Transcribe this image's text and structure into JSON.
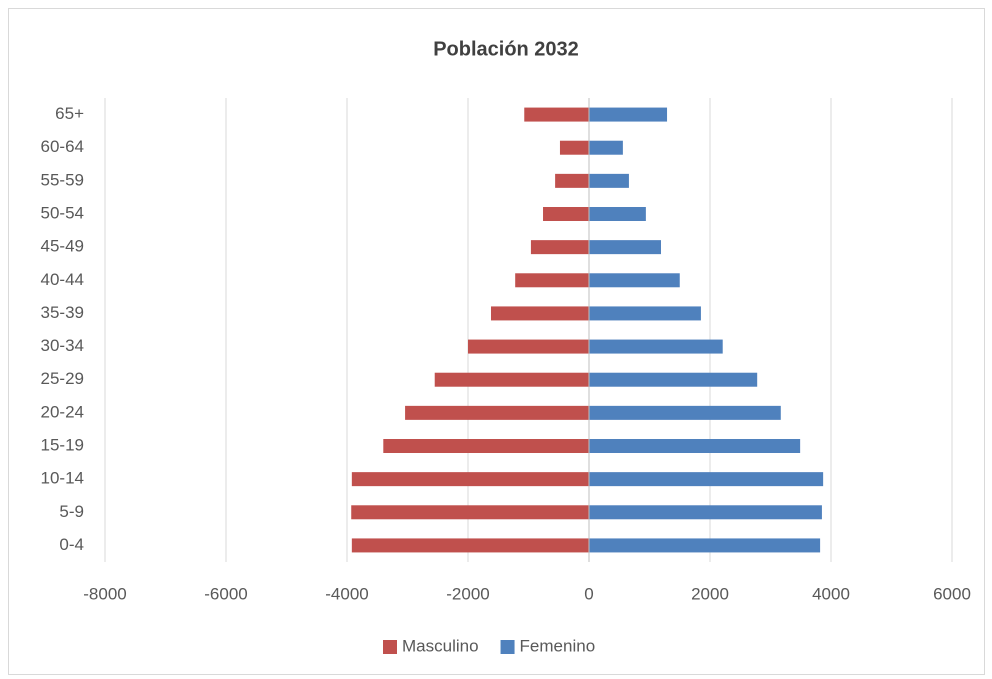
{
  "chart_data": {
    "type": "bar",
    "orientation": "horizontal",
    "title": "Población 2032",
    "categories": [
      "0-4",
      "5-9",
      "10-14",
      "15-19",
      "20-24",
      "25-29",
      "30-34",
      "35-39",
      "40-44",
      "45-49",
      "50-54",
      "55-59",
      "60-64",
      "65+"
    ],
    "series": [
      {
        "name": "Masculino",
        "color": "#c0504d",
        "values": [
          -3920,
          -3930,
          -3920,
          -3400,
          -3040,
          -2550,
          -2000,
          -1620,
          -1220,
          -960,
          -760,
          -560,
          -480,
          -1070
        ]
      },
      {
        "name": "Femenino",
        "color": "#4f81bd",
        "values": [
          3820,
          3850,
          3870,
          3490,
          3170,
          2780,
          2210,
          1850,
          1500,
          1190,
          940,
          660,
          560,
          1290
        ]
      }
    ],
    "xlim": [
      -8000,
      6000
    ],
    "xticks": [
      -8000,
      -6000,
      -4000,
      -2000,
      0,
      2000,
      4000,
      6000
    ],
    "grid": true,
    "legend": "bottom"
  }
}
